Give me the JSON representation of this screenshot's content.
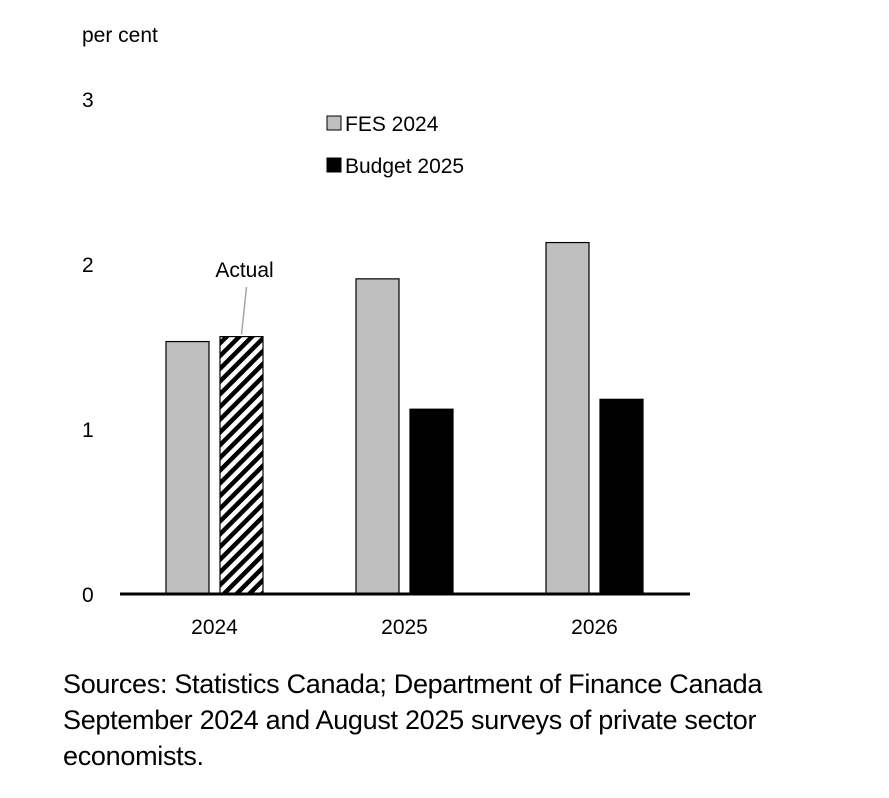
{
  "chart_data": {
    "type": "bar",
    "ylabel": "per cent",
    "ylim": [
      0,
      3
    ],
    "yticks": [
      "0",
      "1",
      "2",
      "3"
    ],
    "categories": [
      "2024",
      "2025",
      "2026"
    ],
    "series": [
      {
        "name": "FES 2024",
        "values": [
          1.53,
          1.91,
          2.13
        ],
        "color": "#bfbfbf"
      },
      {
        "name": "Budget 2025",
        "values": [
          1.56,
          1.12,
          1.18
        ],
        "color": "#000000"
      }
    ],
    "annotations": [
      {
        "text": "Actual",
        "category": "2024",
        "series": "Budget 2025",
        "pattern": "hatched"
      }
    ],
    "grid": false,
    "legend_position": "top-center"
  },
  "source": "Sources: Statistics Canada; Department of Finance Canada September 2024 and August 2025 surveys of private sector economists."
}
